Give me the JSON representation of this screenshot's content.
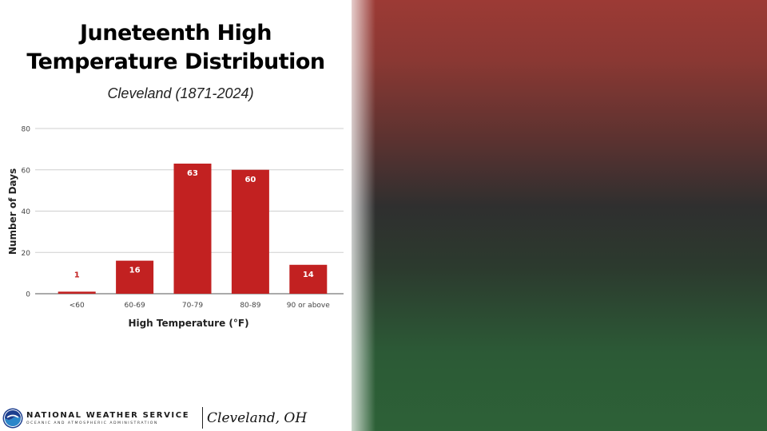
{
  "title_line1": "Juneteenth High",
  "title_line2": "Temperature Distribution",
  "subtitle": "Cleveland (1871-2024)",
  "chart_data": {
    "type": "bar",
    "categories": [
      "<60",
      "60-69",
      "70-79",
      "80-89",
      "90 or above"
    ],
    "values": [
      1,
      16,
      63,
      60,
      14
    ],
    "data_labels": [
      "1",
      "16",
      "63",
      "60",
      "14"
    ],
    "xlabel": "High Temperature (°F)",
    "ylabel": "Number of Days",
    "ylim": [
      0,
      80
    ],
    "yticks": [
      "0",
      "20",
      "40",
      "60",
      "80"
    ],
    "grid": true,
    "bar_color": "#c22121",
    "label_color_inside": "#ffffff",
    "label_color_outside": "#c22121"
  },
  "footer": {
    "logo_icon": "noaa-logo-icon",
    "agency_name": "NATIONAL WEATHER SERVICE",
    "agency_sub": "OCEANIC AND ATMOSPHERIC ADMINISTRATION",
    "office": "Cleveland, OH"
  },
  "colors": {
    "flag_red": "#9c3a35",
    "flag_black": "#2f2f2f",
    "flag_green": "#2d6137"
  }
}
